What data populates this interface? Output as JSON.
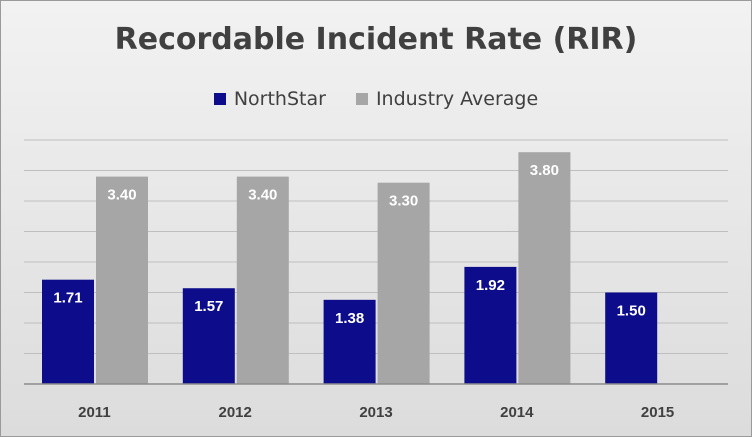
{
  "chart_data": {
    "type": "bar",
    "title": "Recordable Incident Rate (RIR)",
    "categories": [
      "2011",
      "2012",
      "2013",
      "2014",
      "2015"
    ],
    "series": [
      {
        "name": "NorthStar",
        "values": [
          1.71,
          1.57,
          1.38,
          1.92,
          1.5
        ],
        "labels": [
          "1.71",
          "1.57",
          "1.38",
          "1.92",
          "1.50"
        ],
        "color": "#0d0d8c"
      },
      {
        "name": "Industry Average",
        "values": [
          3.4,
          3.4,
          3.3,
          3.8,
          null
        ],
        "labels": [
          "3.40",
          "3.40",
          "3.30",
          "3.80",
          ""
        ],
        "color": "#a6a6a6"
      }
    ],
    "xlabel": "",
    "ylabel": "",
    "ylim": [
      0,
      4.0
    ],
    "grid": true,
    "legend_position": "top"
  }
}
